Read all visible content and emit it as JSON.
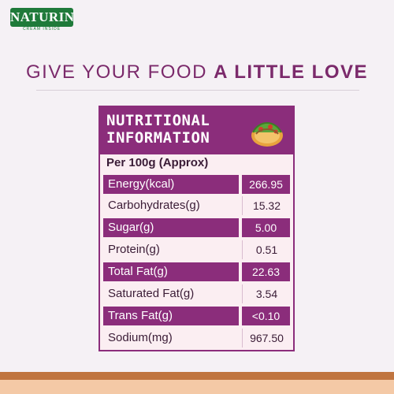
{
  "logo": {
    "brand": "NATURIN",
    "tagline": "CREAM INSIDE"
  },
  "headline": {
    "part1": "GIVE YOUR FOOD ",
    "part2": "A LITTLE LOVE"
  },
  "panel": {
    "title_line1": "NUTRITIONAL",
    "title_line2": "INFORMATION",
    "per": "Per 100g (Approx)",
    "rows": [
      {
        "name": "Energy(kcal)",
        "value": "266.95"
      },
      {
        "name": "Carbohydrates(g)",
        "value": "15.32"
      },
      {
        "name": "Sugar(g)",
        "value": "5.00"
      },
      {
        "name": "Protein(g)",
        "value": "0.51"
      },
      {
        "name": "Total Fat(g)",
        "value": "22.63"
      },
      {
        "name": "Saturated Fat(g)",
        "value": "3.54"
      },
      {
        "name": "Trans Fat(g)",
        "value": "<0.10"
      },
      {
        "name": "Sodium(mg)",
        "value": "967.50"
      }
    ]
  },
  "colors": {
    "accent": "#8b2d7b",
    "brand_green": "#1f7a3a",
    "band_dark": "#c07540",
    "band_light": "#f4c9a6"
  },
  "icons": {
    "taco": "taco-icon"
  }
}
